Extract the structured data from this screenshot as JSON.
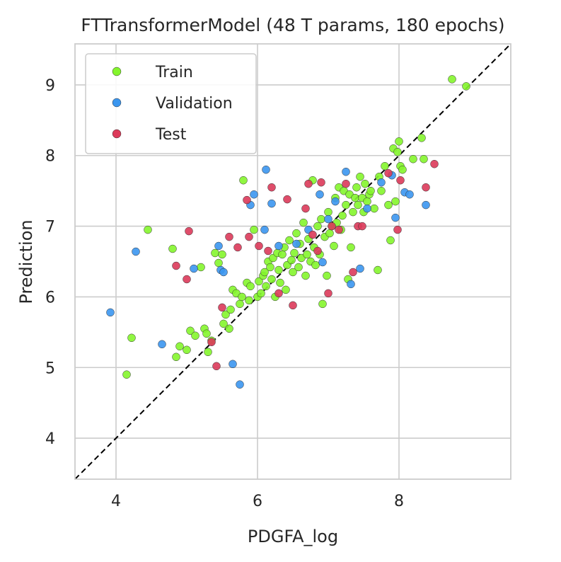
{
  "chart_data": {
    "type": "scatter",
    "title": "FTTransformerModel (48 T params, 180 epochs)",
    "xlabel": "PDGFA_log",
    "ylabel": "Prediction",
    "xlim": [
      3.42,
      9.58
    ],
    "ylim": [
      3.42,
      9.58
    ],
    "xticks": [
      4,
      6,
      8
    ],
    "yticks": [
      4,
      5,
      6,
      7,
      8,
      9
    ],
    "grid": true,
    "legend_position": "top-left",
    "identity_line": true,
    "series": [
      {
        "name": "Train",
        "color": "#84f52c",
        "points": [
          [
            4.15,
            4.9
          ],
          [
            4.22,
            5.42
          ],
          [
            4.45,
            6.95
          ],
          [
            4.8,
            6.68
          ],
          [
            4.85,
            5.15
          ],
          [
            4.9,
            5.3
          ],
          [
            5.0,
            5.25
          ],
          [
            5.05,
            5.52
          ],
          [
            5.12,
            5.45
          ],
          [
            5.2,
            6.42
          ],
          [
            5.25,
            5.55
          ],
          [
            5.28,
            5.48
          ],
          [
            5.3,
            5.22
          ],
          [
            5.35,
            5.38
          ],
          [
            5.4,
            6.62
          ],
          [
            5.45,
            6.48
          ],
          [
            5.5,
            6.6
          ],
          [
            5.52,
            5.62
          ],
          [
            5.55,
            5.75
          ],
          [
            5.6,
            5.55
          ],
          [
            5.62,
            5.82
          ],
          [
            5.65,
            6.1
          ],
          [
            5.7,
            6.05
          ],
          [
            5.75,
            5.9
          ],
          [
            5.78,
            6.0
          ],
          [
            5.8,
            7.65
          ],
          [
            5.85,
            6.2
          ],
          [
            5.88,
            5.95
          ],
          [
            5.9,
            6.15
          ],
          [
            5.95,
            6.95
          ],
          [
            6.0,
            6.0
          ],
          [
            6.02,
            6.22
          ],
          [
            6.05,
            6.05
          ],
          [
            6.08,
            6.3
          ],
          [
            6.1,
            6.35
          ],
          [
            6.12,
            6.15
          ],
          [
            6.15,
            6.5
          ],
          [
            6.18,
            6.42
          ],
          [
            6.2,
            6.25
          ],
          [
            6.22,
            6.55
          ],
          [
            6.25,
            6.0
          ],
          [
            6.28,
            6.62
          ],
          [
            6.3,
            6.38
          ],
          [
            6.32,
            6.2
          ],
          [
            6.35,
            6.6
          ],
          [
            6.38,
            6.7
          ],
          [
            6.4,
            6.1
          ],
          [
            6.42,
            6.45
          ],
          [
            6.45,
            6.8
          ],
          [
            6.48,
            6.52
          ],
          [
            6.5,
            6.35
          ],
          [
            6.52,
            6.62
          ],
          [
            6.55,
            6.9
          ],
          [
            6.58,
            6.42
          ],
          [
            6.6,
            6.75
          ],
          [
            6.62,
            6.55
          ],
          [
            6.65,
            7.05
          ],
          [
            6.68,
            6.3
          ],
          [
            6.7,
            6.6
          ],
          [
            6.72,
            6.82
          ],
          [
            6.75,
            6.5
          ],
          [
            6.78,
            7.65
          ],
          [
            6.8,
            6.7
          ],
          [
            6.82,
            6.45
          ],
          [
            6.85,
            7.0
          ],
          [
            6.88,
            6.6
          ],
          [
            6.9,
            7.1
          ],
          [
            6.92,
            5.9
          ],
          [
            6.95,
            6.85
          ],
          [
            6.98,
            6.3
          ],
          [
            7.0,
            7.2
          ],
          [
            7.02,
            6.9
          ],
          [
            7.05,
            7.0
          ],
          [
            7.08,
            6.72
          ],
          [
            7.1,
            7.4
          ],
          [
            7.12,
            7.05
          ],
          [
            7.15,
            7.55
          ],
          [
            7.18,
            6.95
          ],
          [
            7.2,
            7.15
          ],
          [
            7.22,
            7.5
          ],
          [
            7.25,
            7.3
          ],
          [
            7.28,
            6.25
          ],
          [
            7.3,
            7.45
          ],
          [
            7.32,
            6.7
          ],
          [
            7.35,
            7.2
          ],
          [
            7.38,
            7.4
          ],
          [
            7.4,
            7.55
          ],
          [
            7.42,
            7.3
          ],
          [
            7.45,
            7.7
          ],
          [
            7.48,
            7.4
          ],
          [
            7.5,
            7.2
          ],
          [
            7.52,
            7.6
          ],
          [
            7.55,
            7.35
          ],
          [
            7.58,
            7.45
          ],
          [
            7.6,
            7.5
          ],
          [
            7.65,
            7.25
          ],
          [
            7.7,
            6.38
          ],
          [
            7.72,
            7.7
          ],
          [
            7.75,
            7.5
          ],
          [
            7.8,
            7.85
          ],
          [
            7.85,
            7.3
          ],
          [
            7.88,
            6.8
          ],
          [
            7.92,
            8.1
          ],
          [
            7.95,
            7.35
          ],
          [
            7.98,
            8.05
          ],
          [
            8.0,
            8.2
          ],
          [
            8.02,
            7.85
          ],
          [
            8.05,
            7.8
          ],
          [
            8.2,
            7.95
          ],
          [
            8.32,
            8.25
          ],
          [
            8.35,
            7.95
          ],
          [
            8.75,
            9.08
          ],
          [
            8.95,
            8.98
          ]
        ]
      },
      {
        "name": "Validation",
        "color": "#3b96ef",
        "points": [
          [
            3.92,
            5.78
          ],
          [
            4.28,
            6.64
          ],
          [
            4.65,
            5.33
          ],
          [
            5.1,
            6.4
          ],
          [
            5.45,
            6.72
          ],
          [
            5.48,
            6.38
          ],
          [
            5.52,
            6.35
          ],
          [
            5.65,
            5.05
          ],
          [
            5.75,
            4.76
          ],
          [
            5.9,
            7.3
          ],
          [
            5.95,
            7.45
          ],
          [
            6.1,
            6.95
          ],
          [
            6.12,
            7.8
          ],
          [
            6.2,
            7.32
          ],
          [
            6.3,
            6.72
          ],
          [
            6.55,
            6.75
          ],
          [
            6.72,
            6.95
          ],
          [
            6.88,
            7.45
          ],
          [
            6.92,
            6.49
          ],
          [
            7.0,
            7.1
          ],
          [
            7.1,
            7.35
          ],
          [
            7.25,
            7.77
          ],
          [
            7.32,
            6.18
          ],
          [
            7.45,
            6.4
          ],
          [
            7.55,
            7.25
          ],
          [
            7.75,
            7.62
          ],
          [
            7.9,
            7.72
          ],
          [
            7.95,
            7.12
          ],
          [
            8.08,
            7.48
          ],
          [
            8.15,
            7.45
          ],
          [
            8.38,
            7.3
          ]
        ]
      },
      {
        "name": "Test",
        "color": "#dc3a5a",
        "points": [
          [
            4.85,
            6.44
          ],
          [
            5.0,
            6.25
          ],
          [
            5.03,
            6.93
          ],
          [
            5.35,
            5.36
          ],
          [
            5.42,
            5.02
          ],
          [
            5.5,
            5.85
          ],
          [
            5.6,
            6.85
          ],
          [
            5.72,
            6.7
          ],
          [
            5.85,
            7.37
          ],
          [
            5.88,
            6.85
          ],
          [
            6.02,
            6.72
          ],
          [
            6.15,
            6.65
          ],
          [
            6.2,
            7.55
          ],
          [
            6.3,
            6.05
          ],
          [
            6.42,
            7.38
          ],
          [
            6.5,
            5.88
          ],
          [
            6.68,
            7.25
          ],
          [
            6.72,
            7.6
          ],
          [
            6.78,
            6.88
          ],
          [
            6.85,
            6.65
          ],
          [
            6.9,
            7.62
          ],
          [
            7.0,
            6.05
          ],
          [
            7.05,
            7.0
          ],
          [
            7.15,
            6.95
          ],
          [
            7.25,
            7.6
          ],
          [
            7.35,
            6.35
          ],
          [
            7.42,
            7.0
          ],
          [
            7.48,
            7.0
          ],
          [
            7.85,
            7.75
          ],
          [
            7.98,
            6.95
          ],
          [
            8.02,
            7.65
          ],
          [
            8.38,
            7.55
          ],
          [
            8.5,
            7.88
          ]
        ]
      }
    ]
  }
}
